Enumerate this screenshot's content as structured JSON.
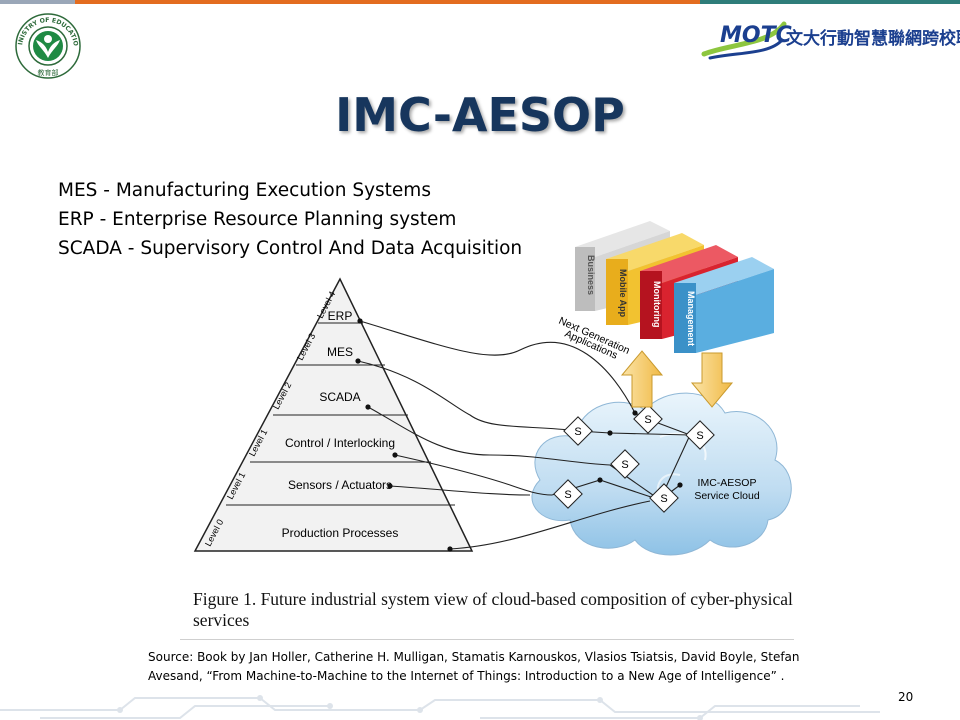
{
  "header": {
    "moe_logo": {
      "top_text": "MINISTRY OF EDUCATION",
      "bottom_text": "教育部"
    },
    "alliance_logo": {
      "mark": "MOTC",
      "name": "文大行動智慧聯網跨校聯盟"
    }
  },
  "slide": {
    "title": "IMC-AESOP",
    "definitions": [
      "MES - Manufacturing Execution Systems",
      "ERP - Enterprise Resource Planning system",
      "SCADA - Supervisory Control And Data Acquisition"
    ],
    "figure": {
      "pyramid_levels": [
        {
          "label": "ERP",
          "level": "Level 4"
        },
        {
          "label": "MES",
          "level": "Level 3"
        },
        {
          "label": "SCADA",
          "level": "Level 2"
        },
        {
          "label": "Control / Interlocking",
          "level": "Level 1"
        },
        {
          "label": "Sensors / Actuators",
          "level": "Level 1"
        },
        {
          "label": "Production Processes",
          "level": "Level 0"
        }
      ],
      "applications": [
        "Business",
        "Mobile App",
        "Monitoring",
        "Management"
      ],
      "applications_label_line1": "Next Generation",
      "applications_label_line2": "Applications",
      "service_node": "S",
      "cloud_label_line1": "IMC-AESOP",
      "cloud_label_line2": "Service Cloud",
      "colors": {
        "business": "#c9c9c9",
        "mobile_app": "#f2c230",
        "monitoring": "#d9232f",
        "management": "#5aaee0",
        "arrow": "#f5cf72",
        "cloud": "#cfe6f6"
      }
    },
    "caption": "Figure 1.   Future industrial system view of cloud-based composition of cyber-physical services",
    "source_line1": "Source: Book by Jan Holler, Catherine H. Mulligan, Stamatis Karnouskos, Vlasios Tsiatsis, David Boyle, Stefan",
    "source_line2": "Avesand, “From Machine-to-Machine to the Internet of Things: Introduction to a New Age of Intelligence” .",
    "page_number": "20"
  }
}
